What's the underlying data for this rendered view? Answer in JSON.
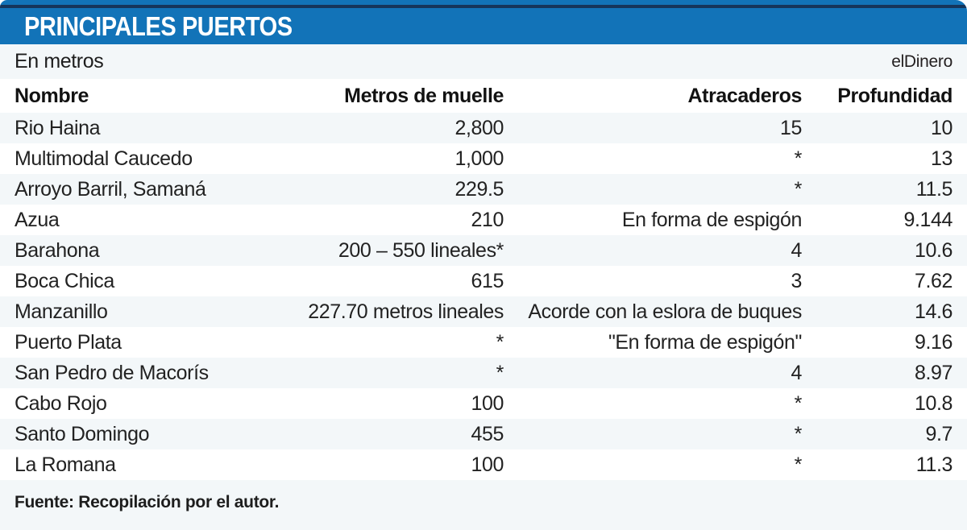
{
  "header": {
    "title": "PRINCIPALES PUERTOS",
    "units_label": "En metros",
    "brand": "elDinero",
    "bar_color": "#1273b8",
    "accent_line_color": "#16355b"
  },
  "table": {
    "columns": [
      "Nombre",
      "Metros de muelle",
      "Atracaderos",
      "Profundidad"
    ],
    "rows": [
      {
        "cells": [
          "Rio Haina",
          "2,800",
          "15",
          "10"
        ]
      },
      {
        "cells": [
          "Multimodal Caucedo",
          "1,000",
          "*",
          "13"
        ]
      },
      {
        "cells": [
          "Arroyo Barril, Samaná",
          "229.5",
          "*",
          "11.5"
        ]
      },
      {
        "cells": [
          "Azua",
          "210",
          "En forma de espigón",
          "9.144"
        ]
      },
      {
        "cells": [
          "Barahona",
          "200 – 550 lineales*",
          "4",
          "10.6"
        ]
      },
      {
        "cells": [
          "Boca Chica",
          "615",
          "3",
          "7.62"
        ]
      },
      {
        "cells": [
          "Manzanillo",
          "227.70 metros lineales",
          "Acorde con la eslora de buques",
          "14.6"
        ]
      },
      {
        "cells": [
          "Puerto Plata",
          "*",
          "\"En forma de espigón\"",
          "9.16"
        ]
      },
      {
        "cells": [
          "San Pedro de Macorís",
          "*",
          "4",
          "8.97"
        ]
      },
      {
        "cells": [
          "Cabo Rojo",
          "100",
          "*",
          "10.8"
        ]
      },
      {
        "cells": [
          "Santo Domingo",
          "455",
          "*",
          "9.7"
        ]
      },
      {
        "cells": [
          "La Romana",
          "100",
          "*",
          "11.3"
        ]
      }
    ],
    "stripe_color": "#f3f7f9"
  },
  "footer": {
    "source": "Fuente: Recopilación por el autor."
  },
  "chart_data": {
    "type": "table",
    "title": "PRINCIPALES PUERTOS",
    "subtitle": "En metros",
    "columns": [
      "Nombre",
      "Metros de muelle",
      "Atracaderos",
      "Profundidad"
    ],
    "rows": [
      [
        "Rio Haina",
        "2,800",
        "15",
        "10"
      ],
      [
        "Multimodal Caucedo",
        "1,000",
        "*",
        "13"
      ],
      [
        "Arroyo Barril, Samaná",
        "229.5",
        "*",
        "11.5"
      ],
      [
        "Azua",
        "210",
        "En forma de espigón",
        "9.144"
      ],
      [
        "Barahona",
        "200 – 550 lineales*",
        "4",
        "10.6"
      ],
      [
        "Boca Chica",
        "615",
        "3",
        "7.62"
      ],
      [
        "Manzanillo",
        "227.70 metros lineales",
        "Acorde con la eslora de buques",
        "14.6"
      ],
      [
        "Puerto Plata",
        "*",
        "\"En forma de espigón\"",
        "9.16"
      ],
      [
        "San Pedro de Macorís",
        "*",
        "4",
        "8.97"
      ],
      [
        "Cabo Rojo",
        "100",
        "*",
        "10.8"
      ],
      [
        "Santo Domingo",
        "455",
        "*",
        "9.7"
      ],
      [
        "La Romana",
        "100",
        "*",
        "11.3"
      ]
    ],
    "source": "Fuente: Recopilación por el autor.",
    "brand": "elDinero",
    "layout": {
      "striped": true,
      "first_row_striped": true,
      "numeric_columns_right_aligned": true
    }
  }
}
